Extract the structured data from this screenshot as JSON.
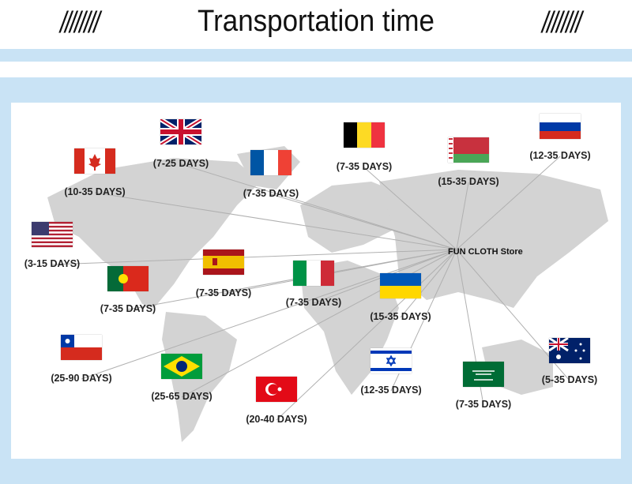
{
  "header": {
    "title": "Transportation time",
    "left_deco": "////////",
    "right_deco": "////////"
  },
  "colors": {
    "band": "#c9e3f5",
    "map": "#d3d3d3",
    "line": "#b0b0b0"
  },
  "store": "FUN CLOTH Store",
  "destinations": [
    {
      "flag": "uk-flag",
      "days": "(7-25 DAYS)"
    },
    {
      "flag": "canada-flag",
      "days": "(10-35 DAYS)"
    },
    {
      "flag": "france-flag",
      "days": "(7-35 DAYS)"
    },
    {
      "flag": "belgium-flag",
      "days": "(7-35 DAYS)"
    },
    {
      "flag": "belarus-flag",
      "days": "(15-35 DAYS)"
    },
    {
      "flag": "russia-flag",
      "days": "(12-35 DAYS)"
    },
    {
      "flag": "usa-flag",
      "days": "(3-15 DAYS)"
    },
    {
      "flag": "spain-flag",
      "days": "(7-35 DAYS)"
    },
    {
      "flag": "portugal-flag",
      "days": "(7-35 DAYS)"
    },
    {
      "flag": "italy-flag",
      "days": "(7-35 DAYS)"
    },
    {
      "flag": "ukraine-flag",
      "days": "(15-35 DAYS)"
    },
    {
      "flag": "chile-flag",
      "days": "(25-90 DAYS)"
    },
    {
      "flag": "brazil-flag",
      "days": "(25-65 DAYS)"
    },
    {
      "flag": "turkey-flag",
      "days": "(20-40 DAYS)"
    },
    {
      "flag": "israel-flag",
      "days": "(12-35 DAYS)"
    },
    {
      "flag": "saudi-arabia-flag",
      "days": "(7-35 DAYS)"
    },
    {
      "flag": "australia-flag",
      "days": "(5-35 DAYS)"
    }
  ]
}
